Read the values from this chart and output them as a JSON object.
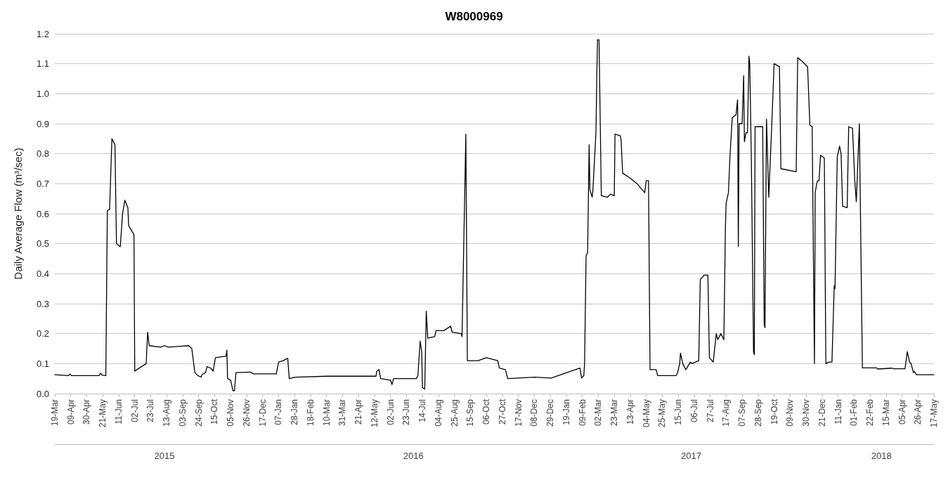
{
  "chart_data": {
    "type": "line",
    "title": "W8000969",
    "ylabel": "Daily Average Flow (m³/sec)",
    "xlim": [
      "2015-03-19",
      "2018-05-17"
    ],
    "xticks": [
      {
        "value": "2015-03-19",
        "label": "19-Mar"
      },
      {
        "value": "2015-04-09",
        "label": "09-Apr"
      },
      {
        "value": "2015-04-30",
        "label": "30-Apr"
      },
      {
        "value": "2015-05-21",
        "label": "21-May"
      },
      {
        "value": "2015-06-11",
        "label": "11-Jun"
      },
      {
        "value": "2015-07-02",
        "label": "02-Jul"
      },
      {
        "value": "2015-07-23",
        "label": "23-Jul"
      },
      {
        "value": "2015-08-13",
        "label": "13-Aug"
      },
      {
        "value": "2015-09-03",
        "label": "03-Sep"
      },
      {
        "value": "2015-09-24",
        "label": "24-Sep"
      },
      {
        "value": "2015-10-15",
        "label": "15-Oct"
      },
      {
        "value": "2015-11-05",
        "label": "05-Nov"
      },
      {
        "value": "2015-11-26",
        "label": "26-Nov"
      },
      {
        "value": "2015-12-17",
        "label": "17-Dec"
      },
      {
        "value": "2016-01-07",
        "label": "07-Jan"
      },
      {
        "value": "2016-01-28",
        "label": "28-Jan"
      },
      {
        "value": "2016-02-18",
        "label": "18-Feb"
      },
      {
        "value": "2016-03-10",
        "label": "10-Mar"
      },
      {
        "value": "2016-03-31",
        "label": "31-Mar"
      },
      {
        "value": "2016-04-21",
        "label": "21-Apr"
      },
      {
        "value": "2016-05-12",
        "label": "12-May"
      },
      {
        "value": "2016-06-02",
        "label": "02-Jun"
      },
      {
        "value": "2016-06-23",
        "label": "23-Jun"
      },
      {
        "value": "2016-07-14",
        "label": "14-Jul"
      },
      {
        "value": "2016-08-04",
        "label": "04-Aug"
      },
      {
        "value": "2016-08-25",
        "label": "25-Aug"
      },
      {
        "value": "2016-09-15",
        "label": "15-Sep"
      },
      {
        "value": "2016-10-06",
        "label": "06-Oct"
      },
      {
        "value": "2016-10-27",
        "label": "27-Oct"
      },
      {
        "value": "2016-11-17",
        "label": "17-Nov"
      },
      {
        "value": "2016-12-08",
        "label": "08-Dec"
      },
      {
        "value": "2016-12-29",
        "label": "29-Dec"
      },
      {
        "value": "2017-01-19",
        "label": "19-Jan"
      },
      {
        "value": "2017-02-09",
        "label": "09-Feb"
      },
      {
        "value": "2017-03-02",
        "label": "02-Mar"
      },
      {
        "value": "2017-03-23",
        "label": "23-Mar"
      },
      {
        "value": "2017-04-13",
        "label": "13-Apr"
      },
      {
        "value": "2017-05-04",
        "label": "04-May"
      },
      {
        "value": "2017-05-25",
        "label": "25-May"
      },
      {
        "value": "2017-06-15",
        "label": "15-Jun"
      },
      {
        "value": "2017-07-06",
        "label": "06-Jul"
      },
      {
        "value": "2017-07-27",
        "label": "27-Jul"
      },
      {
        "value": "2017-08-17",
        "label": "17-Aug"
      },
      {
        "value": "2017-09-07",
        "label": "07-Sep"
      },
      {
        "value": "2017-09-28",
        "label": "28-Sep"
      },
      {
        "value": "2017-10-19",
        "label": "19-Oct"
      },
      {
        "value": "2017-11-09",
        "label": "09-Nov"
      },
      {
        "value": "2017-11-30",
        "label": "30-Nov"
      },
      {
        "value": "2017-12-21",
        "label": "21-Dec"
      },
      {
        "value": "2018-01-11",
        "label": "11-Jan"
      },
      {
        "value": "2018-02-01",
        "label": "01-Feb"
      },
      {
        "value": "2018-02-22",
        "label": "22-Feb"
      },
      {
        "value": "2018-03-15",
        "label": "15-Mar"
      },
      {
        "value": "2018-04-05",
        "label": "05-Apr"
      },
      {
        "value": "2018-04-26",
        "label": "26-Apr"
      },
      {
        "value": "2018-05-17",
        "label": "17-May"
      }
    ],
    "x2lim": [
      "2015-03-19",
      "2018-05-17"
    ],
    "x2ticks": [
      {
        "value": "2015-08-10",
        "label": "2015"
      },
      {
        "value": "2016-07-02",
        "label": "2016"
      },
      {
        "value": "2017-07-02",
        "label": "2017"
      },
      {
        "value": "2018-03-09",
        "label": "2018"
      }
    ],
    "ylim": [
      0,
      1.2
    ],
    "yticks": [
      {
        "value": 0,
        "label": "0.0"
      },
      0.1,
      0.2,
      0.3,
      0.4,
      0.5,
      0.6,
      0.7,
      0.8,
      0.9,
      {
        "value": 1,
        "label": "1.0"
      },
      1.1,
      1.2
    ],
    "grid": "y",
    "marker": "none",
    "line_style": "solid",
    "series": [
      {
        "color": "#000000",
        "x": [
          "2015-03-19",
          "2015-04-06",
          "2015-04-08",
          "2015-04-10",
          "2015-05-16",
          "2015-05-18",
          "2015-05-20",
          "2015-05-25",
          "2015-05-27",
          "2015-05-30",
          "2015-06-02",
          "2015-06-06",
          "2015-06-08",
          "2015-06-13",
          "2015-06-16",
          "2015-06-19",
          "2015-06-23",
          "2015-06-24",
          "2015-07-01",
          "2015-07-02",
          "2015-07-05",
          "2015-07-09",
          "2015-07-17",
          "2015-07-19",
          "2015-07-21",
          "2015-08-05",
          "2015-08-10",
          "2015-08-15",
          "2015-09-11",
          "2015-09-15",
          "2015-09-19",
          "2015-09-23",
          "2015-09-27",
          "2015-09-29",
          "2015-10-03",
          "2015-10-05",
          "2015-10-10",
          "2015-10-13",
          "2015-10-16",
          "2015-10-30",
          "2015-10-31",
          "2015-11-01",
          "2015-11-05",
          "2015-11-08",
          "2015-11-10",
          "2015-11-12",
          "2015-12-01",
          "2015-12-05",
          "2016-01-04",
          "2016-01-07",
          "2016-01-13",
          "2016-01-19",
          "2016-01-21",
          "2016-01-29",
          "2016-03-10",
          "2016-05-14",
          "2016-05-15",
          "2016-05-18",
          "2016-05-20",
          "2016-06-02",
          "2016-06-04",
          "2016-06-06",
          "2016-07-06",
          "2016-07-08",
          "2016-07-11",
          "2016-07-13",
          "2016-07-14",
          "2016-07-17",
          "2016-07-19",
          "2016-07-21",
          "2016-07-30",
          "2016-08-01",
          "2016-08-11",
          "2016-08-20",
          "2016-08-22",
          "2016-09-03",
          "2016-09-04",
          "2016-09-09",
          "2016-09-11",
          "2016-09-25",
          "2016-10-06",
          "2016-10-21",
          "2016-10-23",
          "2016-10-31",
          "2016-11-03",
          "2016-12-08",
          "2016-12-30",
          "2017-02-06",
          "2017-02-08",
          "2017-02-11",
          "2017-02-12",
          "2017-02-14",
          "2017-02-16",
          "2017-02-18",
          "2017-02-19",
          "2017-02-22",
          "2017-02-23",
          "2017-02-27",
          "2017-02-28",
          "2017-03-01",
          "2017-03-03",
          "2017-03-06",
          "2017-03-14",
          "2017-03-18",
          "2017-03-23",
          "2017-03-24",
          "2017-03-31",
          "2017-04-01",
          "2017-04-03",
          "2017-04-12",
          "2017-04-22",
          "2017-05-02",
          "2017-05-04",
          "2017-05-07",
          "2017-05-09",
          "2017-05-17",
          "2017-05-19",
          "2017-06-12",
          "2017-06-14",
          "2017-06-17",
          "2017-06-18",
          "2017-06-21",
          "2017-06-25",
          "2017-07-01",
          "2017-07-03",
          "2017-07-12",
          "2017-07-14",
          "2017-07-19",
          "2017-07-24",
          "2017-07-26",
          "2017-07-31",
          "2017-08-04",
          "2017-08-06",
          "2017-08-10",
          "2017-08-14",
          "2017-08-16",
          "2017-08-17",
          "2017-08-20",
          "2017-08-22",
          "2017-08-25",
          "2017-08-30",
          "2017-09-01",
          "2017-09-02",
          "2017-09-03",
          "2017-09-07",
          "2017-09-09",
          "2017-09-10",
          "2017-09-12",
          "2017-09-14",
          "2017-09-16",
          "2017-09-17",
          "2017-09-19",
          "2017-09-22",
          "2017-09-23",
          "2017-09-24",
          "2017-10-04",
          "2017-10-06",
          "2017-10-07",
          "2017-10-09",
          "2017-10-12",
          "2017-10-16",
          "2017-10-19",
          "2017-10-26",
          "2017-10-28",
          "2017-11-17",
          "2017-11-19",
          "2017-11-24",
          "2017-11-28",
          "2017-12-02",
          "2017-12-05",
          "2017-12-08",
          "2017-12-11",
          "2017-12-12",
          "2017-12-14",
          "2017-12-15",
          "2017-12-17",
          "2017-12-19",
          "2017-12-24",
          "2017-12-26",
          "2017-12-30",
          "2018-01-03",
          "2018-01-06",
          "2018-01-07",
          "2018-01-10",
          "2018-01-13",
          "2018-01-15",
          "2018-01-17",
          "2018-01-23",
          "2018-01-25",
          "2018-01-30",
          "2018-02-02",
          "2018-02-04",
          "2018-02-08",
          "2018-02-12",
          "2018-03-03",
          "2018-03-04",
          "2018-03-23",
          "2018-03-25",
          "2018-04-09",
          "2018-04-12",
          "2018-04-15",
          "2018-04-17",
          "2018-04-20",
          "2018-04-21",
          "2018-04-24",
          "2018-05-17"
        ],
        "values": [
          0.063,
          0.06,
          0.065,
          0.06,
          0.06,
          0.068,
          0.062,
          0.06,
          0.61,
          0.615,
          0.85,
          0.83,
          0.5,
          0.49,
          0.6,
          0.645,
          0.62,
          0.56,
          0.53,
          0.075,
          0.08,
          0.087,
          0.1,
          0.205,
          0.16,
          0.155,
          0.16,
          0.155,
          0.16,
          0.15,
          0.07,
          0.06,
          0.055,
          0.065,
          0.07,
          0.09,
          0.085,
          0.075,
          0.12,
          0.125,
          0.145,
          0.05,
          0.045,
          0.01,
          0.01,
          0.07,
          0.072,
          0.066,
          0.066,
          0.105,
          0.11,
          0.118,
          0.05,
          0.055,
          0.058,
          0.058,
          0.075,
          0.08,
          0.05,
          0.045,
          0.03,
          0.05,
          0.05,
          0.06,
          0.175,
          0.14,
          0.02,
          0.015,
          0.275,
          0.185,
          0.19,
          0.21,
          0.21,
          0.225,
          0.205,
          0.2,
          0.19,
          0.865,
          0.11,
          0.11,
          0.12,
          0.11,
          0.085,
          0.08,
          0.05,
          0.055,
          0.052,
          0.085,
          0.052,
          0.06,
          0.1,
          0.46,
          0.47,
          0.83,
          0.68,
          0.655,
          0.68,
          0.875,
          1.05,
          1.18,
          1.18,
          0.66,
          0.655,
          0.665,
          0.66,
          0.865,
          0.86,
          0.845,
          0.735,
          0.72,
          0.7,
          0.67,
          0.71,
          0.71,
          0.08,
          0.08,
          0.06,
          0.06,
          0.068,
          0.1,
          0.135,
          0.1,
          0.08,
          0.105,
          0.1,
          0.11,
          0.38,
          0.395,
          0.395,
          0.12,
          0.105,
          0.2,
          0.18,
          0.2,
          0.18,
          0.55,
          0.635,
          0.67,
          0.79,
          0.92,
          0.93,
          0.98,
          0.49,
          0.9,
          0.9,
          1.06,
          0.84,
          0.87,
          0.87,
          1.125,
          1.1,
          0.8,
          0.14,
          0.13,
          0.89,
          0.89,
          0.23,
          0.22,
          0.915,
          0.655,
          0.9,
          1.1,
          1.09,
          0.75,
          0.74,
          1.12,
          1.11,
          1.1,
          1.09,
          0.895,
          0.89,
          0.1,
          0.67,
          0.7,
          0.71,
          0.71,
          0.795,
          0.785,
          0.1,
          0.105,
          0.105,
          0.36,
          0.35,
          0.79,
          0.825,
          0.8,
          0.625,
          0.62,
          0.89,
          0.885,
          0.71,
          0.64,
          0.9,
          0.086,
          0.086,
          0.082,
          0.085,
          0.083,
          0.083,
          0.14,
          0.105,
          0.1,
          0.07,
          0.075,
          0.063,
          0.063
        ]
      }
    ]
  }
}
